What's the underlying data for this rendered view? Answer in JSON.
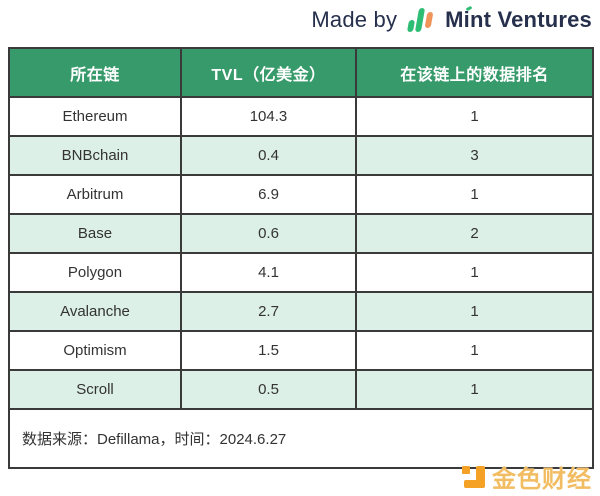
{
  "branding": {
    "made_by": "Made by",
    "brand": "Mint Ventures"
  },
  "chart_data": {
    "type": "table",
    "title": "",
    "columns": [
      "所在链",
      "TVL（亿美金）",
      "在该链上的数据排名"
    ],
    "rows": [
      [
        "Ethereum",
        104.3,
        1
      ],
      [
        "BNBchain",
        0.4,
        3
      ],
      [
        "Arbitrum",
        6.9,
        1
      ],
      [
        "Base",
        0.6,
        2
      ],
      [
        "Polygon",
        4.1,
        1
      ],
      [
        "Avalanche",
        2.7,
        1
      ],
      [
        "Optimism",
        1.5,
        1
      ],
      [
        "Scroll",
        0.5,
        1
      ]
    ],
    "layout_hints": {
      "header_style": "green background, white bold text, centered",
      "row_striping": "white / light mint alternating",
      "grid": "dark solid borders on all cells"
    }
  },
  "source_note": {
    "text": "数据来源：Defillama，时间：2024.6.27"
  },
  "watermark": {
    "text": "金色财经"
  },
  "colors": {
    "header_bg": "#379a6a",
    "row_alt_bg": "#dcf0e7",
    "cell_border": "#3a3a3a",
    "body_text": "#333333",
    "brand_navy": "#26304d",
    "logo_green": "#2ebd74",
    "logo_orange": "#f0945a",
    "watermark_orange": "#f5a125",
    "watermark_gold": "#f2bd62"
  }
}
